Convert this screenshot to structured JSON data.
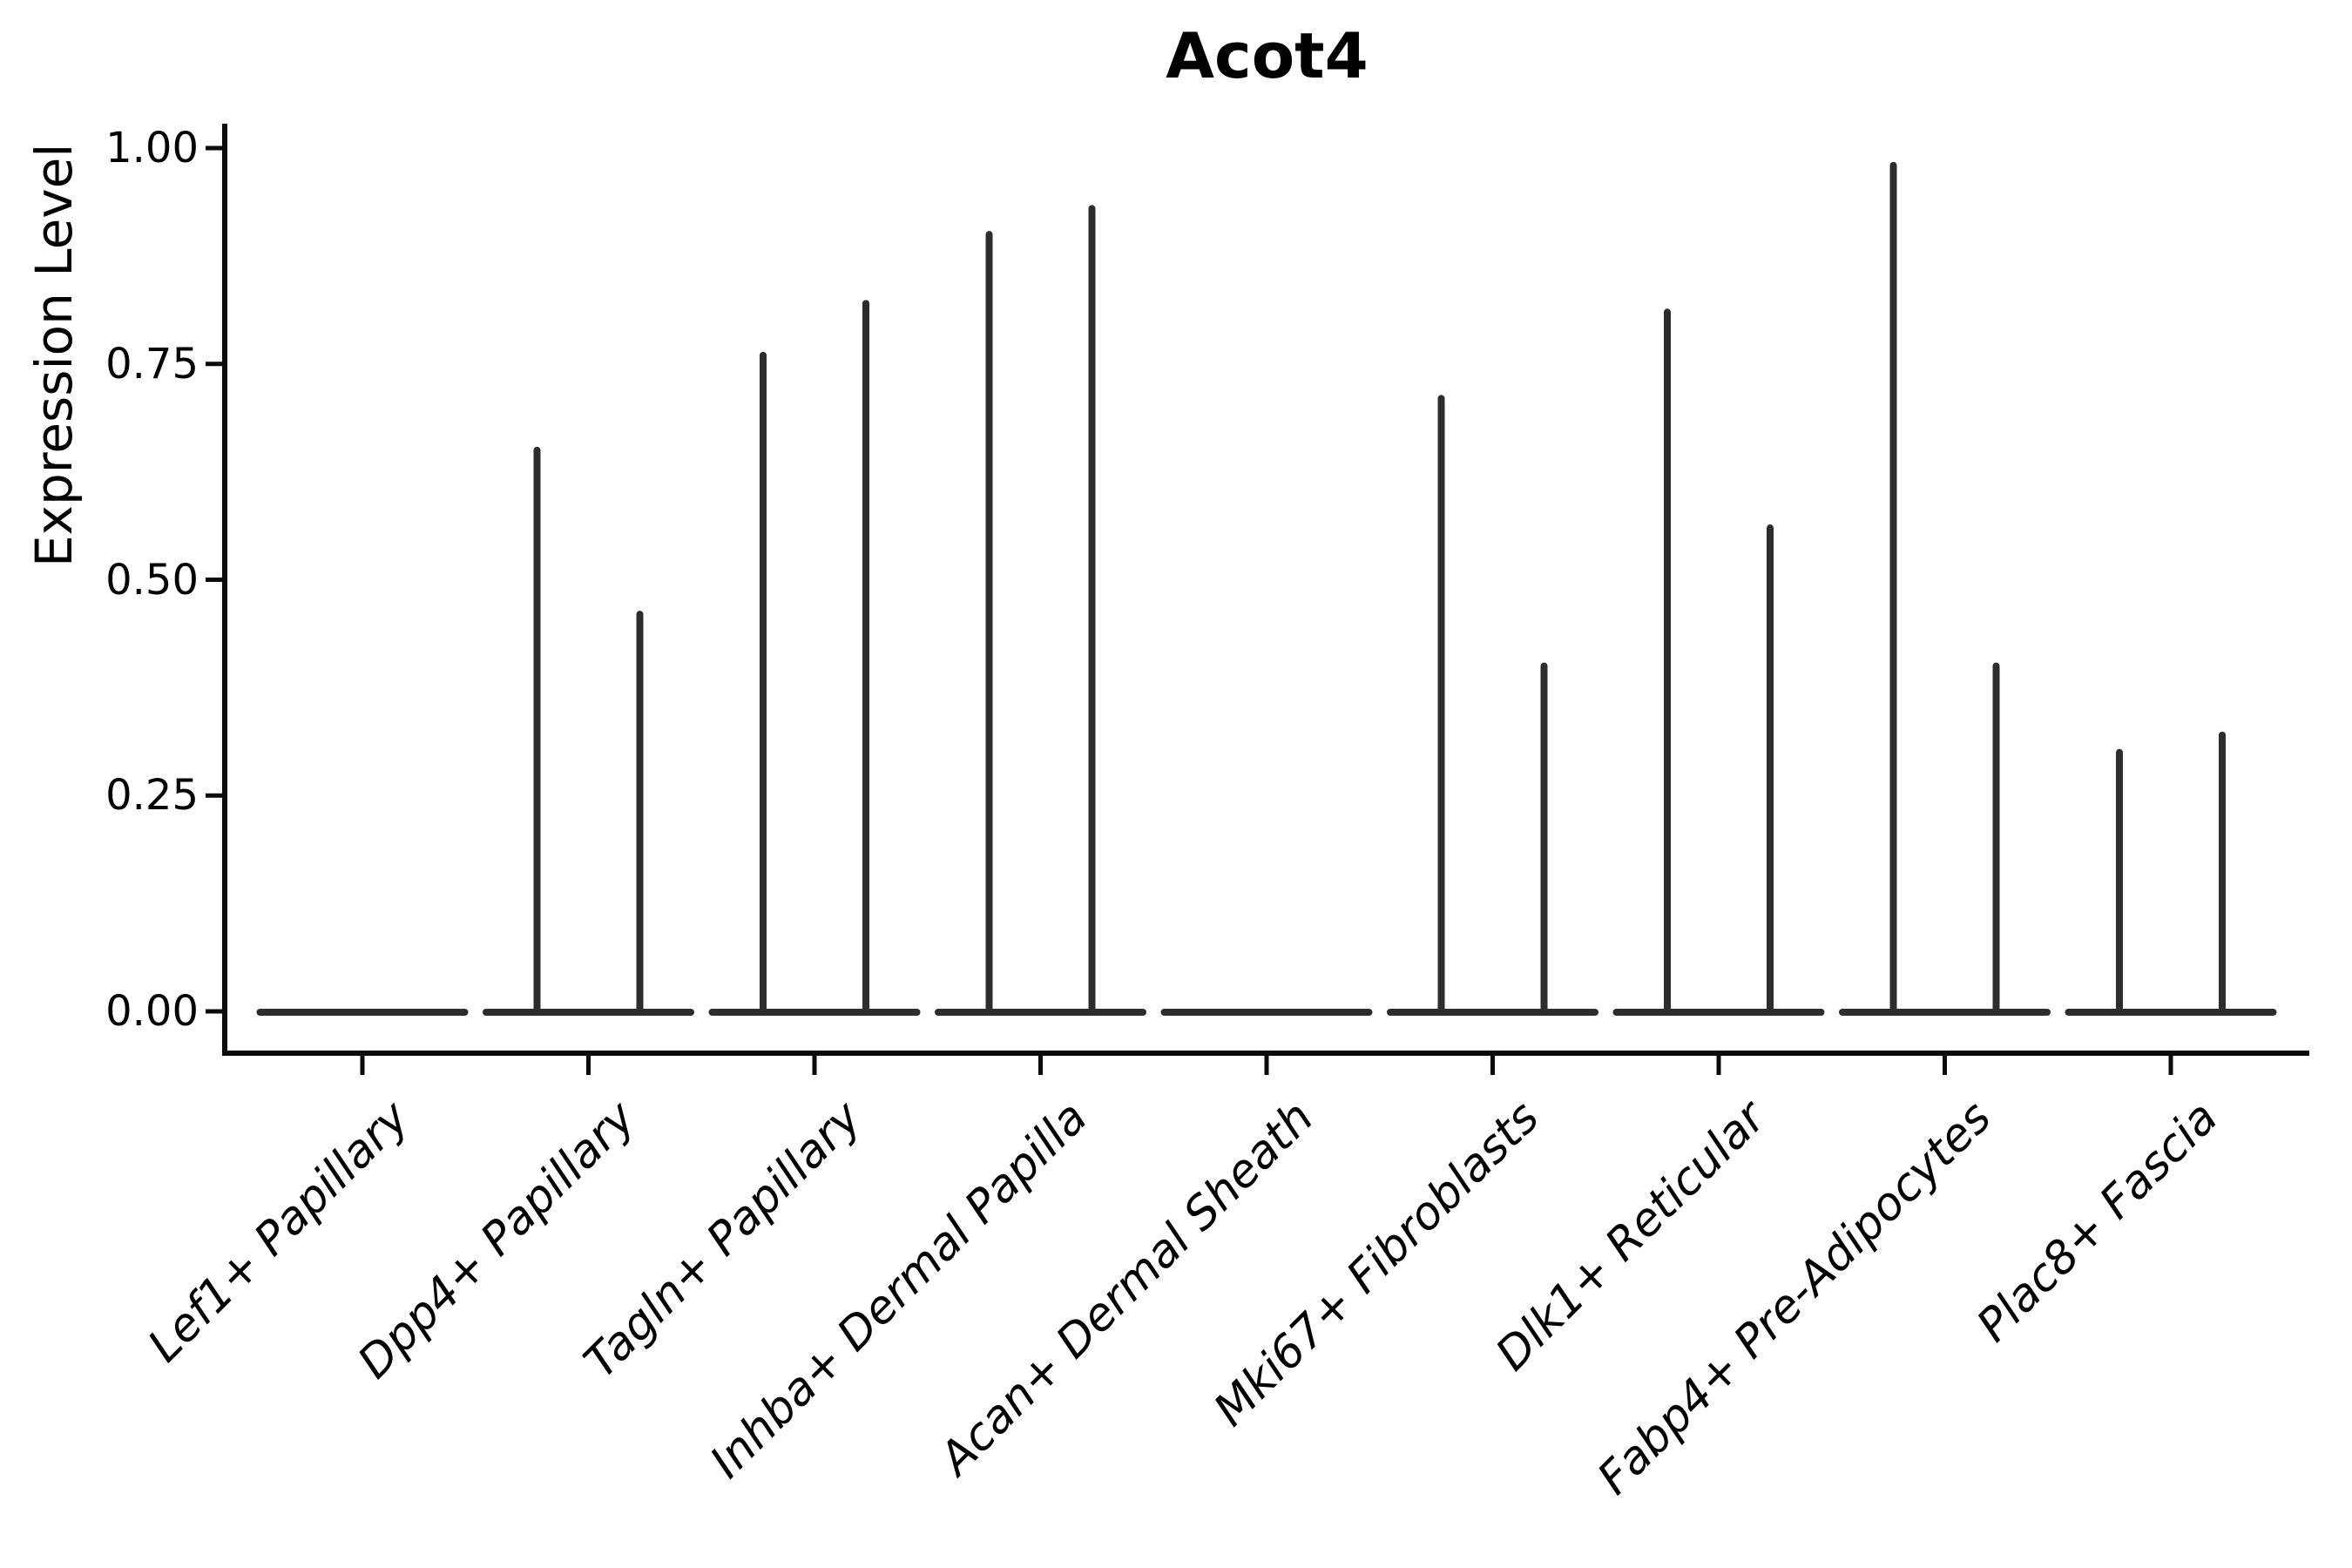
{
  "chart_data": {
    "type": "violin",
    "title": "Acot4",
    "ylabel": "Expression Level",
    "xlabel": "",
    "ylim": [
      0.0,
      1.0
    ],
    "grid": false,
    "legend": "none",
    "yticks": [
      {
        "label": "1.00",
        "value": 1.0
      },
      {
        "label": "0.75",
        "value": 0.75
      },
      {
        "label": "0.50",
        "value": 0.5
      },
      {
        "label": "0.25",
        "value": 0.25
      },
      {
        "label": "0.00",
        "value": 0.0
      }
    ],
    "categories": [
      "Lef1+ Papillary",
      "Dpp4+ Papillary",
      "Tagln+ Papillary",
      "Inhba+ Dermal Papilla",
      "Acan+ Dermal Sheath",
      "Mki67+ Fibroblasts",
      "Dlk1+ Reticular",
      "Fabp4+ Pre-Adipocytes",
      "Plac8+ Fascia"
    ],
    "series": [
      {
        "name": "violin-left-max",
        "values": [
          0,
          0.65,
          0.76,
          0.9,
          0,
          0.71,
          0.81,
          0.98,
          0.3
        ]
      },
      {
        "name": "violin-right-max",
        "values": [
          0,
          0.46,
          0.82,
          0.93,
          0,
          0.4,
          0.56,
          0.4,
          0.32
        ]
      }
    ],
    "baseline_value": 0.0,
    "colors": {
      "violin_line": "#2d2d2d",
      "axis_spine": "#0a0a0a",
      "text": "#000000",
      "background": "#ffffff"
    }
  }
}
